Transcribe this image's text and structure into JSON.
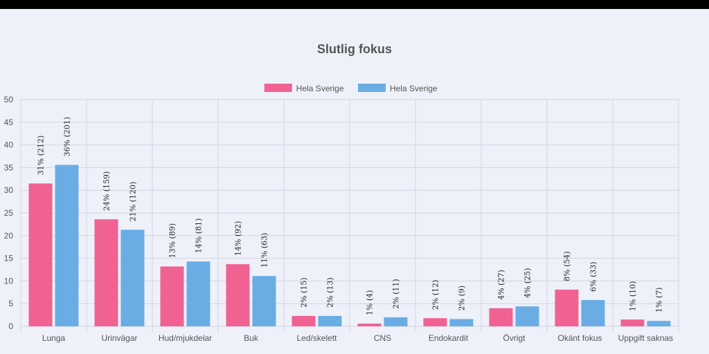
{
  "chart_data": {
    "type": "bar",
    "title": "Slutlig fokus",
    "categories": [
      "Lunga",
      "Urinvägar",
      "Hud/mjukdelar",
      "Buk",
      "Led/skelett",
      "CNS",
      "Endokardit",
      "Övrigt",
      "Okänt fokus",
      "Uppgift saknas"
    ],
    "series": [
      {
        "name": "Hela Sverige",
        "color": "#f06292",
        "values": [
          31.5,
          23.6,
          13.2,
          13.7,
          2.3,
          0.6,
          1.8,
          4.0,
          8.1,
          1.5
        ],
        "labels": [
          "31% (212)",
          "24% (159)",
          "13% (89)",
          "14% (92)",
          "2% (15)",
          "1% (4)",
          "2% (12)",
          "4% (27)",
          "8% (54)",
          "1% (10)"
        ]
      },
      {
        "name": "Hela Sverige",
        "color": "#6aade4",
        "values": [
          35.6,
          21.3,
          14.3,
          11.1,
          2.3,
          2.0,
          1.6,
          4.4,
          5.8,
          1.2
        ],
        "labels": [
          "36% (201)",
          "21% (120)",
          "14% (81)",
          "11% (63)",
          "2% (13)",
          "2% (11)",
          "2% (9)",
          "4% (25)",
          "6% (33)",
          "1% (7)"
        ]
      }
    ],
    "ylim": [
      0,
      50
    ],
    "yticks": [
      0,
      5,
      10,
      15,
      20,
      25,
      30,
      35,
      40,
      45,
      50
    ],
    "legend_position": "top",
    "grid": true
  }
}
